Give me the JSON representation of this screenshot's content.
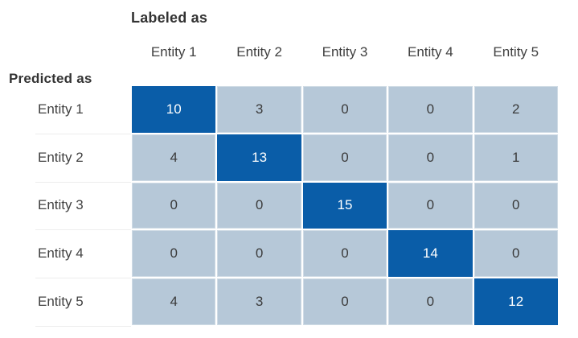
{
  "chart_data": {
    "type": "heatmap",
    "subtype": "confusion-matrix",
    "x_axis_label": "Labeled as",
    "y_axis_label": "Predicted as",
    "columns": [
      "Entity 1",
      "Entity 2",
      "Entity 3",
      "Entity 4",
      "Entity 5"
    ],
    "rows": [
      "Entity 1",
      "Entity 2",
      "Entity 3",
      "Entity 4",
      "Entity 5"
    ],
    "matrix": [
      [
        10,
        3,
        0,
        0,
        2
      ],
      [
        4,
        13,
        0,
        0,
        1
      ],
      [
        0,
        0,
        15,
        0,
        0
      ],
      [
        0,
        0,
        0,
        14,
        0
      ],
      [
        4,
        3,
        0,
        0,
        12
      ]
    ],
    "legend_position": "none",
    "grid": false
  },
  "colors": {
    "diagonal_cell": "#0a5da8",
    "off_diagonal_cell": "#b6c8d8",
    "diagonal_text": "#ffffff",
    "off_diagonal_text": "#3a3a3a",
    "axis_title_text": "#333333",
    "label_text": "#404040",
    "row_separator": "#ededed",
    "background": "#ffffff"
  }
}
